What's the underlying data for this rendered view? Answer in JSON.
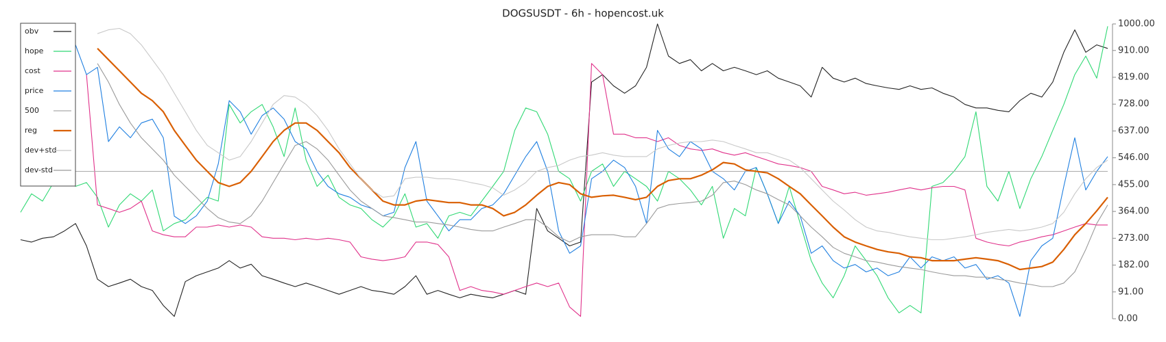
{
  "chart_data": {
    "type": "line",
    "title": "DOGSUSDT - 6h - hopencost.uk",
    "ylim": [
      0,
      1000
    ],
    "yticks": [
      {
        "value": 0,
        "label": "0.00"
      },
      {
        "value": 91,
        "label": "91.00"
      },
      {
        "value": 182,
        "label": "182.00"
      },
      {
        "value": 273,
        "label": "273.00"
      },
      {
        "value": 364,
        "label": "364.00"
      },
      {
        "value": 455,
        "label": "455.00"
      },
      {
        "value": 546,
        "label": "546.00"
      },
      {
        "value": 637,
        "label": "637.00"
      },
      {
        "value": 728,
        "label": "728.00"
      },
      {
        "value": 819,
        "label": "819.00"
      },
      {
        "value": 910,
        "label": "910.00"
      },
      {
        "value": 1000,
        "label": "1000.00"
      }
    ],
    "legend": "upper left",
    "grid": false,
    "series": [
      {
        "name": "obv",
        "color": "#222222",
        "values": [
          268,
          260,
          273,
          278,
          298,
          323,
          247,
          134,
          109,
          121,
          134,
          109,
          96,
          45,
          8,
          126,
          146,
          159,
          172,
          197,
          172,
          185,
          146,
          134,
          121,
          109,
          121,
          109,
          96,
          83,
          96,
          109,
          96,
          91,
          83,
          109,
          146,
          83,
          96,
          83,
          71,
          83,
          76,
          71,
          83,
          96,
          83,
          374,
          298,
          273,
          247,
          260,
          803,
          828,
          790,
          765,
          790,
          853,
          1000,
          891,
          866,
          879,
          841,
          866,
          841,
          853,
          841,
          828,
          841,
          816,
          803,
          790,
          752,
          853,
          816,
          803,
          816,
          798,
          790,
          783,
          778,
          790,
          778,
          783,
          765,
          752,
          727,
          715,
          715,
          707,
          702,
          740,
          765,
          752,
          803,
          904,
          980,
          904,
          929,
          917
        ]
      },
      {
        "name": "hope",
        "color": "#2fd873",
        "values": [
          361,
          424,
          399,
          462,
          475,
          449,
          462,
          412,
          311,
          386,
          424,
          399,
          437,
          298,
          323,
          336,
          374,
          412,
          399,
          727,
          664,
          702,
          727,
          651,
          550,
          715,
          538,
          449,
          487,
          412,
          386,
          374,
          336,
          311,
          349,
          424,
          311,
          323,
          273,
          349,
          361,
          349,
          399,
          449,
          500,
          639,
          715,
          702,
          626,
          500,
          475,
          399,
          500,
          525,
          449,
          500,
          475,
          449,
          399,
          500,
          475,
          437,
          386,
          449,
          273,
          374,
          349,
          513,
          424,
          323,
          449,
          323,
          197,
          121,
          71,
          146,
          247,
          197,
          146,
          71,
          20,
          45,
          20,
          449,
          462,
          500,
          550,
          702,
          449,
          399,
          500,
          374,
          475,
          550,
          639,
          727,
          828,
          891,
          816,
          992
        ]
      },
      {
        "name": "cost",
        "color": "#e0308a",
        "values": [
          null,
          null,
          null,
          null,
          null,
          null,
          828,
          386,
          374,
          361,
          374,
          399,
          298,
          285,
          278,
          278,
          311,
          311,
          318,
          311,
          318,
          311,
          278,
          273,
          273,
          268,
          273,
          268,
          273,
          268,
          260,
          210,
          202,
          197,
          202,
          210,
          260,
          260,
          252,
          210,
          96,
          109,
          96,
          91,
          83,
          96,
          109,
          121,
          109,
          121,
          40,
          8,
          866,
          828,
          626,
          626,
          614,
          614,
          601,
          614,
          588,
          576,
          571,
          576,
          563,
          555,
          563,
          550,
          538,
          525,
          520,
          513,
          500,
          449,
          437,
          424,
          429,
          419,
          424,
          429,
          437,
          444,
          437,
          444,
          449,
          449,
          437,
          273,
          260,
          252,
          247,
          260,
          268,
          278,
          285,
          298,
          311,
          323,
          318,
          318
        ]
      },
      {
        "name": "price",
        "color": "#1f7fe0",
        "values": [
          null,
          null,
          null,
          null,
          null,
          929,
          828,
          853,
          601,
          651,
          614,
          664,
          677,
          614,
          348,
          323,
          349,
          399,
          525,
          740,
          702,
          626,
          689,
          715,
          677,
          601,
          576,
          500,
          449,
          424,
          412,
          386,
          374,
          349,
          361,
          513,
          601,
          399,
          349,
          298,
          336,
          336,
          374,
          386,
          424,
          487,
          550,
          601,
          500,
          298,
          222,
          247,
          475,
          500,
          538,
          513,
          449,
          323,
          639,
          576,
          550,
          601,
          576,
          500,
          475,
          437,
          500,
          513,
          424,
          323,
          399,
          349,
          222,
          247,
          197,
          172,
          184,
          159,
          172,
          146,
          159,
          210,
          172,
          210,
          197,
          210,
          172,
          184,
          134,
          146,
          121,
          8,
          197,
          247,
          273,
          449,
          614,
          437,
          500,
          550
        ]
      },
      {
        "name": "500",
        "color": "#aaaaaa",
        "values": [
          500,
          500,
          500,
          500,
          500,
          500,
          500,
          500,
          500,
          500,
          500,
          500,
          500,
          500,
          500,
          500,
          500,
          500,
          500,
          500,
          500,
          500,
          500,
          500,
          500,
          500,
          500,
          500,
          500,
          500,
          500,
          500,
          500,
          500,
          500,
          500,
          500,
          500,
          500,
          500,
          500,
          500,
          500,
          500,
          500,
          500,
          500,
          500,
          500,
          500,
          500,
          500,
          500,
          500,
          500,
          500,
          500,
          500,
          500,
          500,
          500,
          500,
          500,
          500,
          500,
          500,
          500,
          500,
          500,
          500,
          500,
          500,
          500,
          500,
          500,
          500,
          500,
          500,
          500,
          500,
          500,
          500,
          500,
          500,
          500,
          500,
          500,
          500,
          500,
          500,
          500,
          500,
          500,
          500,
          500,
          500,
          500,
          500,
          500,
          500
        ]
      },
      {
        "name": "reg",
        "color": "#d95f02",
        "values": [
          null,
          null,
          null,
          null,
          null,
          null,
          null,
          917,
          879,
          841,
          803,
          765,
          740,
          702,
          639,
          588,
          538,
          500,
          462,
          449,
          462,
          500,
          550,
          601,
          639,
          664,
          664,
          639,
          601,
          563,
          513,
          475,
          437,
          399,
          386,
          386,
          399,
          404,
          399,
          394,
          394,
          386,
          386,
          374,
          349,
          361,
          386,
          419,
          449,
          462,
          455,
          424,
          412,
          417,
          419,
          412,
          404,
          412,
          449,
          469,
          475,
          475,
          487,
          505,
          530,
          525,
          505,
          500,
          495,
          475,
          449,
          424,
          386,
          349,
          311,
          278,
          260,
          247,
          235,
          227,
          222,
          210,
          207,
          197,
          197,
          197,
          202,
          207,
          202,
          197,
          184,
          167,
          172,
          177,
          192,
          235,
          285,
          323,
          366,
          412
        ]
      },
      {
        "name": "dev+std",
        "color": "#c8c8c8",
        "values": [
          null,
          null,
          null,
          null,
          null,
          null,
          null,
          967,
          980,
          985,
          967,
          929,
          879,
          828,
          765,
          702,
          639,
          588,
          563,
          538,
          550,
          601,
          664,
          727,
          757,
          752,
          727,
          689,
          639,
          576,
          525,
          475,
          437,
          412,
          417,
          475,
          480,
          480,
          475,
          475,
          470,
          462,
          455,
          444,
          419,
          437,
          462,
          500,
          513,
          520,
          538,
          550,
          555,
          563,
          555,
          550,
          550,
          550,
          576,
          588,
          596,
          601,
          601,
          606,
          601,
          588,
          576,
          563,
          563,
          550,
          538,
          513,
          475,
          437,
          399,
          369,
          336,
          311,
          298,
          293,
          285,
          278,
          273,
          268,
          268,
          273,
          278,
          285,
          293,
          298,
          303,
          298,
          303,
          311,
          323,
          361,
          424,
          475,
          513,
          538
        ]
      },
      {
        "name": "dev-std",
        "color": "#999999",
        "values": [
          null,
          null,
          null,
          null,
          null,
          null,
          null,
          866,
          803,
          727,
          664,
          614,
          576,
          538,
          487,
          449,
          412,
          374,
          343,
          328,
          323,
          349,
          399,
          462,
          525,
          588,
          601,
          576,
          538,
          487,
          437,
          399,
          374,
          349,
          343,
          336,
          328,
          328,
          323,
          318,
          311,
          303,
          298,
          298,
          311,
          323,
          336,
          336,
          311,
          278,
          260,
          278,
          285,
          285,
          285,
          278,
          278,
          323,
          374,
          386,
          391,
          394,
          399,
          419,
          462,
          467,
          455,
          437,
          424,
          404,
          386,
          349,
          311,
          278,
          242,
          222,
          210,
          197,
          192,
          184,
          177,
          172,
          167,
          159,
          152,
          146,
          146,
          141,
          141,
          134,
          129,
          121,
          116,
          109,
          109,
          121,
          159,
          235,
          323,
          386
        ]
      }
    ]
  }
}
